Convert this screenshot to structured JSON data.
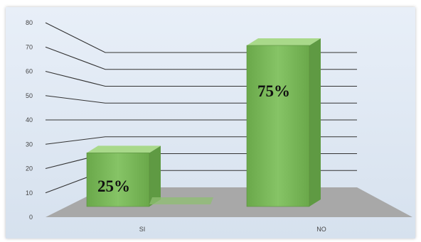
{
  "chart_data": {
    "type": "bar",
    "title": "",
    "xlabel": "",
    "ylabel": "",
    "categories": [
      "SI",
      "NO"
    ],
    "values": [
      25,
      75
    ],
    "data_labels": [
      "25%",
      "75%"
    ],
    "ylim": [
      0,
      80
    ],
    "yticks": [
      0,
      10,
      20,
      30,
      40,
      50,
      60,
      70,
      80
    ],
    "grid": true,
    "style": "3d-bar",
    "colors": {
      "bar_front": "#7bb85a",
      "bar_side": "#5f9a43",
      "bar_top": "#a9d98a",
      "wall": "#dfe8f3",
      "floor": "#a8a8a8",
      "gridline": "#333333"
    }
  }
}
